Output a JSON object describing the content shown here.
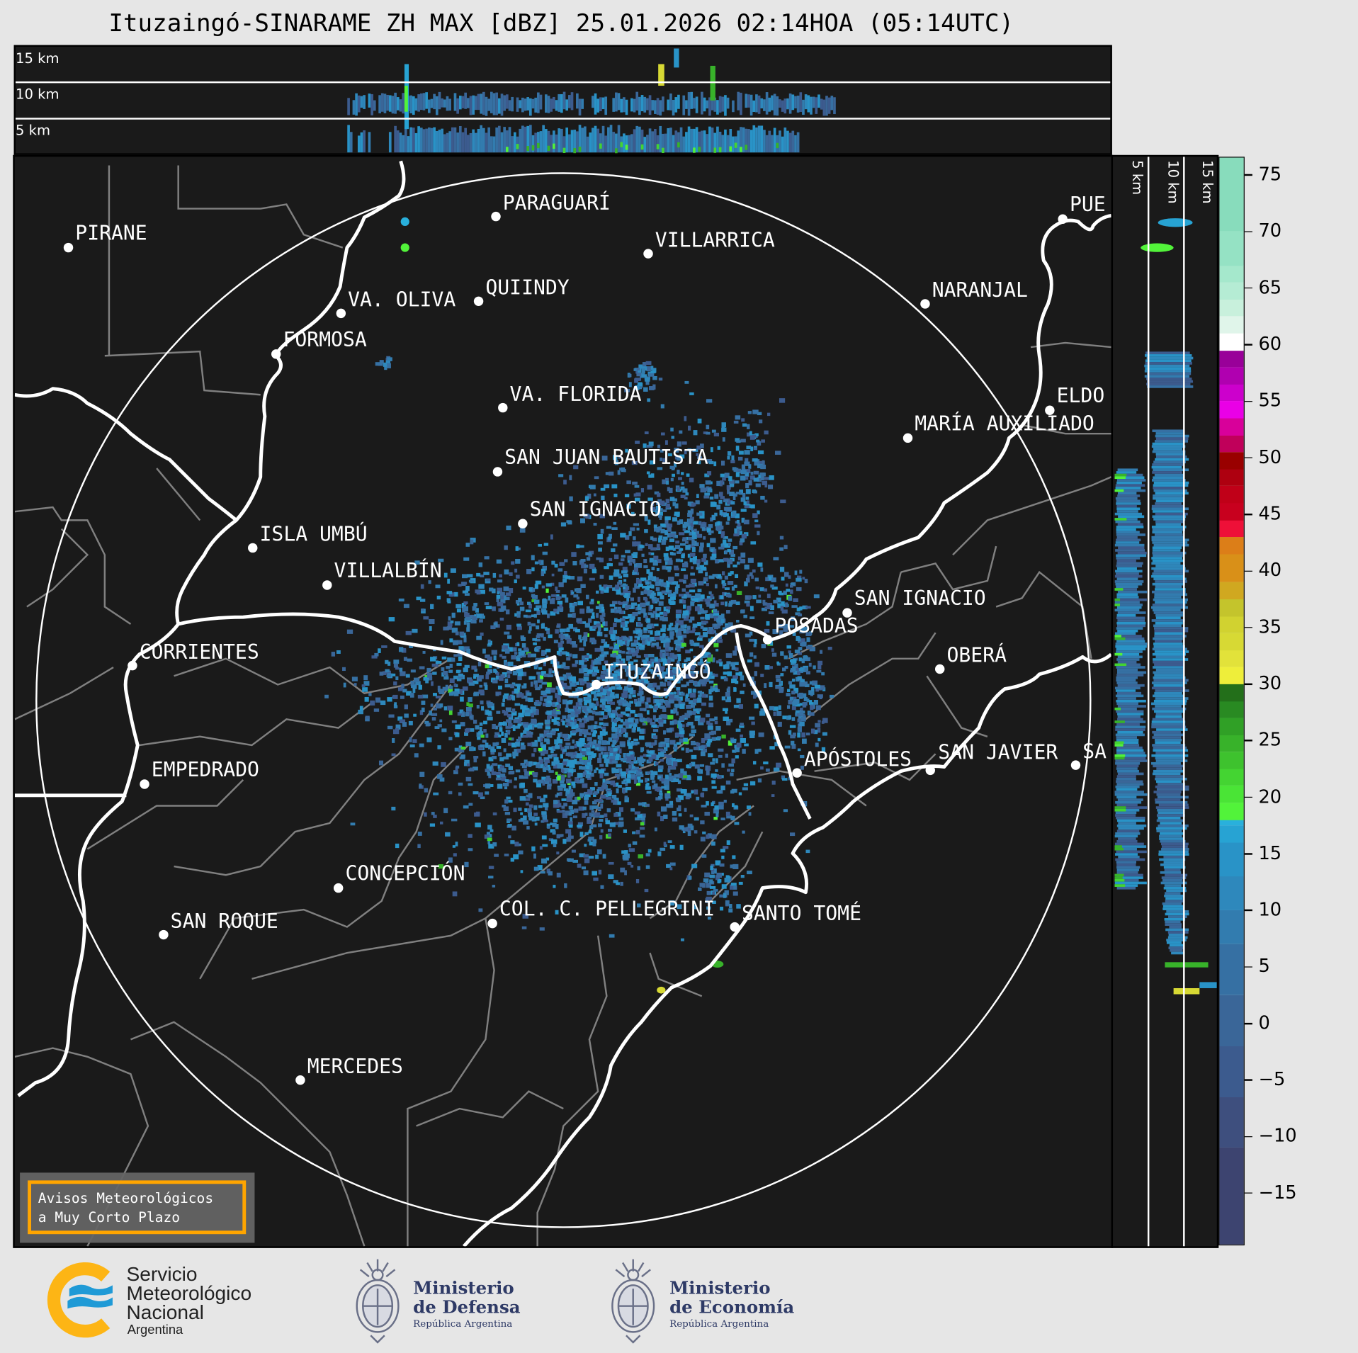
{
  "title": "Ituzaingó-SINARAME ZH MAX [dBZ] 25.01.2026 02:14HOA (05:14UTC)",
  "top_panel": {
    "altitude_labels": [
      "15 km",
      "10 km",
      "5 km"
    ]
  },
  "side_panel": {
    "altitude_labels": [
      "5 km",
      "10 km",
      "15 km"
    ]
  },
  "map": {
    "cities": [
      "PIRANE",
      "PARAGUARÍ",
      "VILLARRICA",
      "QUIINDY",
      "VA. OLIVA",
      "NARANJAL",
      "FORMOSA",
      "PUE",
      "VA. FLORIDA",
      "ELDO",
      "MARÍA AUXILIADO",
      "SAN JUAN BAUTISTA",
      "SAN IGNACIO",
      "ISLA UMBÚ",
      "VILLALBÍN",
      "SAN IGNACIO",
      "POSADAS",
      "CORRIENTES",
      "ITUZAINGÓ",
      "OBERÁ",
      "APÓSTOLES",
      "SAN JAVIER",
      "SA",
      "EMPEDRADO",
      "CONCEPCIÓN",
      "COL. C. PELLEGRINI",
      "SANTO TOMÉ",
      "SAN ROQUE",
      "MERCEDES"
    ],
    "river_color": "#ffffff",
    "boundary_color": "#808080",
    "background": "#1a1a1a"
  },
  "colorbar": {
    "unit": "dBZ",
    "range": [
      -19.5,
      76.5
    ],
    "ticks": [
      "75",
      "70",
      "65",
      "60",
      "55",
      "50",
      "45",
      "40",
      "35",
      "30",
      "25",
      "20",
      "15",
      "10",
      "5",
      "0",
      "−5",
      "−10",
      "−15"
    ],
    "tick_values": [
      75,
      70,
      65,
      60,
      55,
      50,
      45,
      40,
      35,
      30,
      25,
      20,
      15,
      10,
      5,
      0,
      -5,
      -10,
      -15
    ],
    "bands": [
      {
        "from": -19.5,
        "to": -11,
        "color": "#3d4470"
      },
      {
        "from": -11,
        "to": -6.5,
        "color": "#3e4f7e"
      },
      {
        "from": -6.5,
        "to": -2,
        "color": "#3c5b8e"
      },
      {
        "from": -2,
        "to": 2.5,
        "color": "#3a6698"
      },
      {
        "from": 2.5,
        "to": 7,
        "color": "#3670a3"
      },
      {
        "from": 7,
        "to": 10,
        "color": "#327caf"
      },
      {
        "from": 10,
        "to": 13,
        "color": "#2e88bc"
      },
      {
        "from": 13,
        "to": 16,
        "color": "#2993c7"
      },
      {
        "from": 16,
        "to": 17.5,
        "color": "#27a3d3"
      },
      {
        "from": 17.5,
        "to": 18,
        "color": "#29b0dc"
      },
      {
        "from": 18,
        "to": 19.5,
        "color": "#52f33a"
      },
      {
        "from": 19.5,
        "to": 21,
        "color": "#4ae436"
      },
      {
        "from": 21,
        "to": 22.5,
        "color": "#44d432"
      },
      {
        "from": 22.5,
        "to": 24,
        "color": "#3ec22e"
      },
      {
        "from": 24,
        "to": 25.5,
        "color": "#38b22a"
      },
      {
        "from": 25.5,
        "to": 27,
        "color": "#30a026"
      },
      {
        "from": 27,
        "to": 28.5,
        "color": "#298a22"
      },
      {
        "from": 28.5,
        "to": 30,
        "color": "#236f1a"
      },
      {
        "from": 30,
        "to": 31.5,
        "color": "#eeee3a"
      },
      {
        "from": 31.5,
        "to": 33,
        "color": "#e2e23a"
      },
      {
        "from": 33,
        "to": 34.5,
        "color": "#d7d934"
      },
      {
        "from": 34.5,
        "to": 36,
        "color": "#d1d230"
      },
      {
        "from": 36,
        "to": 37.5,
        "color": "#c4c42c"
      },
      {
        "from": 37.5,
        "to": 39,
        "color": "#d0a820"
      },
      {
        "from": 39,
        "to": 41.5,
        "color": "#d99018"
      },
      {
        "from": 41.5,
        "to": 43,
        "color": "#dc7e18"
      },
      {
        "from": 43,
        "to": 44.5,
        "color": "#ee1038"
      },
      {
        "from": 44.5,
        "to": 46,
        "color": "#c8001e"
      },
      {
        "from": 46,
        "to": 47.5,
        "color": "#c00018"
      },
      {
        "from": 47.5,
        "to": 49,
        "color": "#ae0010"
      },
      {
        "from": 49,
        "to": 50.5,
        "color": "#990000"
      },
      {
        "from": 50.5,
        "to": 52,
        "color": "#c0005a"
      },
      {
        "from": 52,
        "to": 53.5,
        "color": "#d8009a"
      },
      {
        "from": 53.5,
        "to": 55,
        "color": "#ea00e6"
      },
      {
        "from": 55,
        "to": 56.5,
        "color": "#cc00cc"
      },
      {
        "from": 56.5,
        "to": 58,
        "color": "#b000b0"
      },
      {
        "from": 58,
        "to": 59.5,
        "color": "#990099"
      },
      {
        "from": 59.5,
        "to": 61,
        "color": "#ffffff"
      },
      {
        "from": 61,
        "to": 62.5,
        "color": "#e0f5ea"
      },
      {
        "from": 62.5,
        "to": 64,
        "color": "#c8f0dc"
      },
      {
        "from": 64,
        "to": 65.5,
        "color": "#b5ecd4"
      },
      {
        "from": 65.5,
        "to": 67,
        "color": "#a5e8cc"
      },
      {
        "from": 67,
        "to": 70,
        "color": "#95e2c4"
      },
      {
        "from": 70,
        "to": 76.5,
        "color": "#88dcbc"
      }
    ]
  },
  "avisos": {
    "line1": "Avisos Meteorológicos",
    "line2": "a Muy Corto Plazo"
  },
  "footer": {
    "smn": {
      "line1": "Servicio",
      "line2": "Meteorológico",
      "line3": "Nacional",
      "line4": "Argentina"
    },
    "defensa": {
      "line1": "Ministerio",
      "line2": "de Defensa",
      "line3": "República Argentina"
    },
    "economia": {
      "line1": "Ministerio",
      "line2": "de Economía",
      "line3": "República Argentina"
    },
    "smn_colors": {
      "ring": "#fdb515",
      "waves": "#1f9ad6"
    }
  }
}
